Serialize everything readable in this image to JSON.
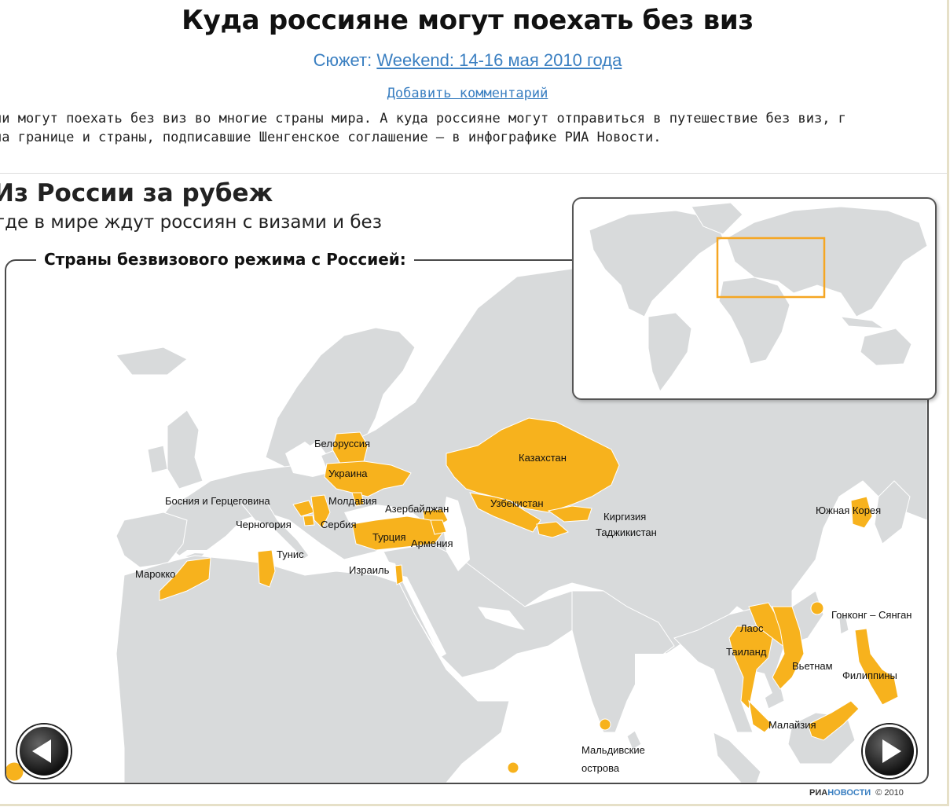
{
  "article": {
    "title": "Куда россияне могут поехать без виз",
    "subject_label": "Сюжет:",
    "subject_link": "Weekend: 14-16 мая 2010 года",
    "add_comment": "Добавить комментарий",
    "lead_line1": "ии могут поехать без виз во многие страны мира. А куда россияне могут отправиться в путешествие без виз, г",
    "lead_line2": "на границе и страны, подписавшие Шенгенское соглашение – в инфографике РИА Новости."
  },
  "graphic": {
    "title": "Из России за рубеж",
    "subtitle": "где в мире ждут россиян с визами и без",
    "legend": "Страны безвизового режима с Россией:",
    "credit_ria": "РИА",
    "credit_novosti": "НОВОСТИ",
    "credit_year": "© 2010"
  },
  "colors": {
    "highlight": "#f7b21d",
    "land": "#d8dadb",
    "border": "#ffffff",
    "sea": "#ffffff",
    "inset_box": "#f5a623"
  },
  "map": {
    "visa_free_countries": [
      {
        "id": "belarus",
        "label": "Белоруссия"
      },
      {
        "id": "ukraine",
        "label": "Украина"
      },
      {
        "id": "moldova",
        "label": "Молдавия"
      },
      {
        "id": "bosnia",
        "label": "Босния и Герцеговина"
      },
      {
        "id": "montenegro",
        "label": "Черногория"
      },
      {
        "id": "serbia",
        "label": "Сербия"
      },
      {
        "id": "azerbaijan",
        "label": "Азербайджан"
      },
      {
        "id": "turkey",
        "label": "Турция"
      },
      {
        "id": "armenia",
        "label": "Армения"
      },
      {
        "id": "israel",
        "label": "Израиль"
      },
      {
        "id": "tunisia",
        "label": "Тунис"
      },
      {
        "id": "morocco",
        "label": "Марокко"
      },
      {
        "id": "kazakhstan",
        "label": "Казахстан"
      },
      {
        "id": "uzbekistan",
        "label": "Узбекистан"
      },
      {
        "id": "kyrgyzstan",
        "label": "Киргизия"
      },
      {
        "id": "tajikistan",
        "label": "Таджикистан"
      },
      {
        "id": "south-korea",
        "label": "Южная Корея"
      },
      {
        "id": "hong-kong",
        "label": "Гонконг – Сянган"
      },
      {
        "id": "laos",
        "label": "Лаос"
      },
      {
        "id": "thailand",
        "label": "Таиланд"
      },
      {
        "id": "vietnam",
        "label": "Вьетнам"
      },
      {
        "id": "philippines",
        "label": "Филиппины"
      },
      {
        "id": "malaysia",
        "label": "Малайзия"
      },
      {
        "id": "maldives",
        "label": "Мальдивские острова"
      }
    ]
  },
  "nav": {
    "prev_icon": "arrow-left-icon",
    "next_icon": "arrow-right-icon"
  }
}
